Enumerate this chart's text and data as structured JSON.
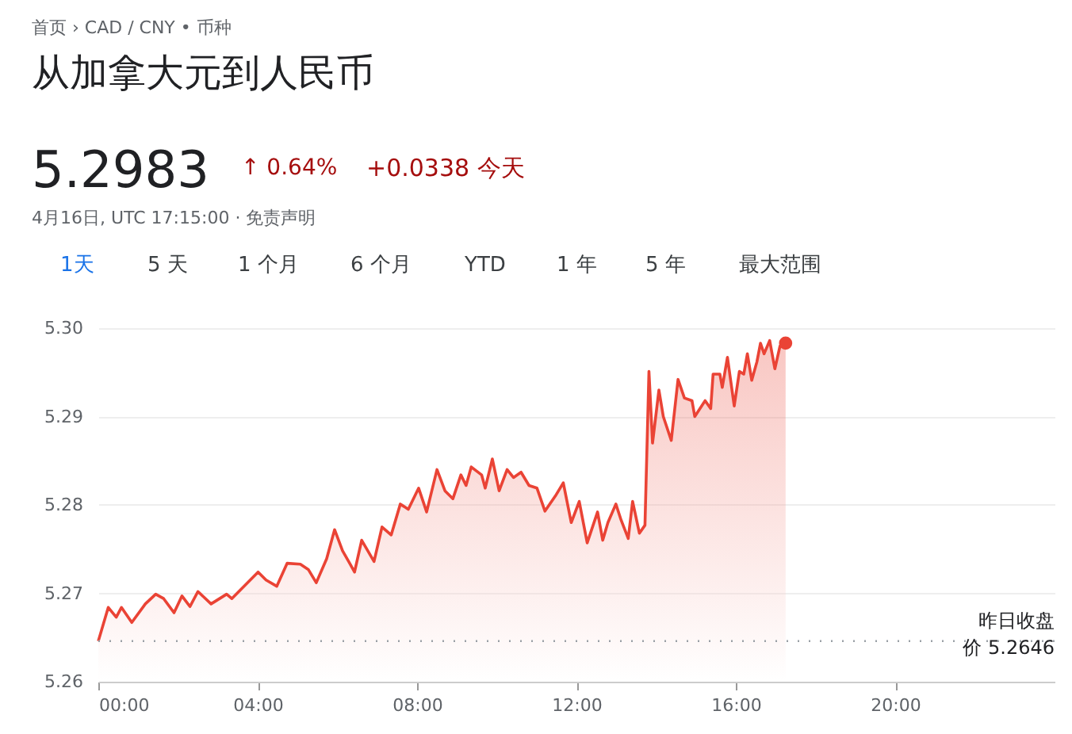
{
  "chart_data": {
    "type": "area",
    "title": "从加拿大元到人民币",
    "annotations": [
      "首页 › CAD / CNY • 币种",
      "5.2983",
      "↑ 0.64%",
      "+0.0338 今天",
      "4月16日, UTC 17:15:00 · 免责声明",
      "1天",
      "5 天",
      "1 个月",
      "6 个月",
      "YTD",
      "1 年",
      "5 年",
      "最大范围"
    ],
    "x": [
      0.0,
      0.25,
      0.45,
      0.58,
      0.84,
      1.18,
      1.44,
      1.64,
      1.9,
      2.1,
      2.3,
      2.5,
      2.83,
      3.22,
      3.35,
      3.68,
      4.01,
      4.21,
      4.48,
      4.74,
      5.07,
      5.27,
      5.47,
      5.73,
      5.93,
      6.13,
      6.32,
      6.43,
      6.61,
      6.92,
      7.12,
      7.35,
      7.58,
      7.78,
      8.04,
      8.24,
      8.5,
      8.7,
      8.9,
      9.1,
      9.23,
      9.36,
      9.62,
      9.71,
      9.89,
      10.06,
      10.26,
      10.42,
      10.61,
      10.81,
      11.01,
      11.21,
      11.47,
      11.67,
      11.87,
      12.07,
      12.27,
      12.53,
      12.66,
      12.79,
      12.99,
      13.12,
      13.3,
      13.41,
      13.58,
      13.72,
      13.82,
      13.91,
      14.07,
      14.18,
      14.38,
      14.55,
      14.71,
      14.9,
      14.97,
      15.23,
      15.37,
      15.43,
      15.6,
      15.66,
      15.79,
      15.96,
      16.09,
      16.2,
      16.29,
      16.4,
      16.53,
      16.62,
      16.71,
      16.85,
      16.98,
      17.11,
      17.25
    ],
    "series": [
      {
        "color": "#ea4335",
        "values": [
          5.2646,
          5.2684,
          5.2673,
          5.2684,
          5.2667,
          5.2688,
          5.2699,
          5.2694,
          5.2678,
          5.2697,
          5.2685,
          5.2702,
          5.2688,
          5.2699,
          5.2694,
          5.2709,
          5.2724,
          5.2715,
          5.2708,
          5.2734,
          5.2733,
          5.2727,
          5.2712,
          5.2739,
          5.2772,
          5.2748,
          5.2733,
          5.2724,
          5.276,
          5.2736,
          5.2775,
          5.2766,
          5.2801,
          5.2795,
          5.2819,
          5.2792,
          5.284,
          5.2816,
          5.2807,
          5.2834,
          5.2822,
          5.2843,
          5.2834,
          5.2819,
          5.2852,
          5.2816,
          5.284,
          5.2831,
          5.2837,
          5.2822,
          5.2819,
          5.2793,
          5.281,
          5.2825,
          5.278,
          5.2804,
          5.2757,
          5.2792,
          5.276,
          5.278,
          5.2801,
          5.2783,
          5.2762,
          5.2804,
          5.2768,
          5.2777,
          5.2951,
          5.287,
          5.293,
          5.29,
          5.2873,
          5.2942,
          5.2921,
          5.2918,
          5.29,
          5.2918,
          5.2909,
          5.2948,
          5.2948,
          5.2933,
          5.2967,
          5.2912,
          5.2951,
          5.2948,
          5.2971,
          5.2941,
          5.2962,
          5.2983,
          5.2971,
          5.2986,
          5.2954,
          5.298,
          5.2983
        ]
      }
    ],
    "xlim": [
      0,
      24
    ],
    "ylim": [
      5.26,
      5.3
    ],
    "xticks": [
      {
        "value": 0,
        "label": "00:00"
      },
      {
        "value": 4,
        "label": "04:00"
      },
      {
        "value": 8,
        "label": "08:00"
      },
      {
        "value": 12,
        "label": "12:00"
      },
      {
        "value": 16,
        "label": "16:00"
      },
      {
        "value": 20,
        "label": "20:00"
      }
    ],
    "yticks": [
      {
        "value": 5.26,
        "label": "5.26"
      },
      {
        "value": 5.27,
        "label": "5.27"
      },
      {
        "value": 5.28,
        "label": "5.28"
      },
      {
        "value": 5.29,
        "label": "5.29"
      },
      {
        "value": 5.3,
        "label": "5.30"
      }
    ],
    "ref_lines": [
      {
        "axis": "y",
        "value": 5.2646,
        "label": "昨日收盘价 5.2646",
        "color": "#9aa0a6",
        "line_style": "dotted"
      }
    ],
    "grid": "y"
  }
}
